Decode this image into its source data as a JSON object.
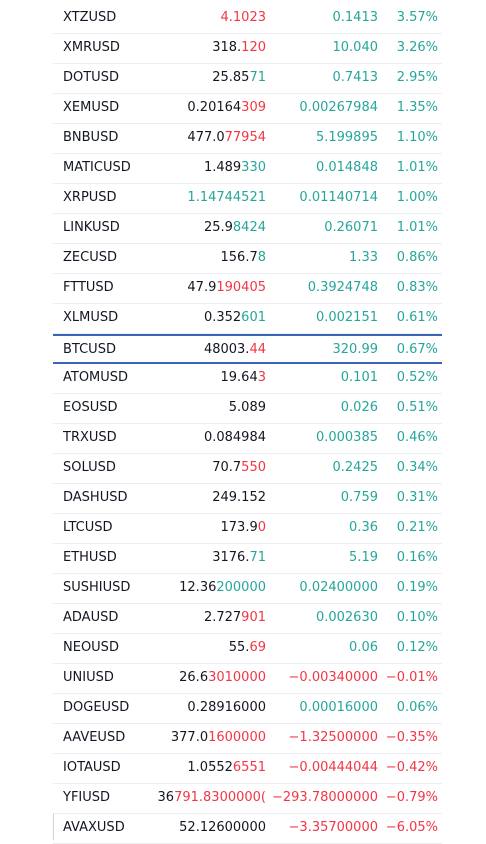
{
  "colors": {
    "up": "#26a69a",
    "down": "#f23645",
    "text": "#131722",
    "selected_border": "#3a64b5"
  },
  "watchlist": {
    "rows": [
      {
        "symbol": "XTZUSD",
        "last_base": "",
        "last_tick": "4.1023",
        "tick_dir": "down",
        "change": "0.1413",
        "change_pct": "3.57%",
        "dir": "up"
      },
      {
        "symbol": "XMRUSD",
        "last_base": "318.",
        "last_tick": "120",
        "tick_dir": "down",
        "change": "10.040",
        "change_pct": "3.26%",
        "dir": "up"
      },
      {
        "symbol": "DOTUSD",
        "last_base": "25.85",
        "last_tick": "71",
        "tick_dir": "up",
        "change": "0.7413",
        "change_pct": "2.95%",
        "dir": "up"
      },
      {
        "symbol": "XEMUSD",
        "last_base": "0.20164",
        "last_tick": "309",
        "tick_dir": "down",
        "change": "0.00267984",
        "change_pct": "1.35%",
        "dir": "up"
      },
      {
        "symbol": "BNBUSD",
        "last_base": "477.0",
        "last_tick": "77954",
        "tick_dir": "down",
        "change": "5.199895",
        "change_pct": "1.10%",
        "dir": "up"
      },
      {
        "symbol": "MATICUSD",
        "last_base": "1.489",
        "last_tick": "330",
        "tick_dir": "up",
        "change": "0.014848",
        "change_pct": "1.01%",
        "dir": "up"
      },
      {
        "symbol": "XRPUSD",
        "last_base": "",
        "last_tick": "1.14744521",
        "tick_dir": "up",
        "change": "0.01140714",
        "change_pct": "1.00%",
        "dir": "up"
      },
      {
        "symbol": "LINKUSD",
        "last_base": "25.9",
        "last_tick": "8424",
        "tick_dir": "up",
        "change": "0.26071",
        "change_pct": "1.01%",
        "dir": "up"
      },
      {
        "symbol": "ZECUSD",
        "last_base": "156.7",
        "last_tick": "8",
        "tick_dir": "up",
        "change": "1.33",
        "change_pct": "0.86%",
        "dir": "up"
      },
      {
        "symbol": "FTTUSD",
        "last_base": "47.9",
        "last_tick": "190405",
        "tick_dir": "down",
        "change": "0.3924748",
        "change_pct": "0.83%",
        "dir": "up"
      },
      {
        "symbol": "XLMUSD",
        "last_base": "0.352",
        "last_tick": "601",
        "tick_dir": "up",
        "change": "0.002151",
        "change_pct": "0.61%",
        "dir": "up"
      },
      {
        "symbol": "BTCUSD",
        "last_base": "48003.",
        "last_tick": "44",
        "tick_dir": "down",
        "change": "320.99",
        "change_pct": "0.67%",
        "dir": "up",
        "selected": true
      },
      {
        "symbol": "ATOMUSD",
        "last_base": "19.64",
        "last_tick": "3",
        "tick_dir": "down",
        "change": "0.101",
        "change_pct": "0.52%",
        "dir": "up"
      },
      {
        "symbol": "EOSUSD",
        "last_base": "5.089",
        "last_tick": "",
        "tick_dir": "up",
        "change": "0.026",
        "change_pct": "0.51%",
        "dir": "up"
      },
      {
        "symbol": "TRXUSD",
        "last_base": "0.084984",
        "last_tick": "",
        "tick_dir": "up",
        "change": "0.000385",
        "change_pct": "0.46%",
        "dir": "up"
      },
      {
        "symbol": "SOLUSD",
        "last_base": "70.7",
        "last_tick": "550",
        "tick_dir": "down",
        "change": "0.2425",
        "change_pct": "0.34%",
        "dir": "up"
      },
      {
        "symbol": "DASHUSD",
        "last_base": "249.152",
        "last_tick": "",
        "tick_dir": "up",
        "change": "0.759",
        "change_pct": "0.31%",
        "dir": "up"
      },
      {
        "symbol": "LTCUSD",
        "last_base": "173.9",
        "last_tick": "0",
        "tick_dir": "down",
        "change": "0.36",
        "change_pct": "0.21%",
        "dir": "up"
      },
      {
        "symbol": "ETHUSD",
        "last_base": "3176.",
        "last_tick": "71",
        "tick_dir": "up",
        "change": "5.19",
        "change_pct": "0.16%",
        "dir": "up"
      },
      {
        "symbol": "SUSHIUSD",
        "last_base": "12.36",
        "last_tick": "200000",
        "tick_dir": "up",
        "change": "0.02400000",
        "change_pct": "0.19%",
        "dir": "up"
      },
      {
        "symbol": "ADAUSD",
        "last_base": "2.727",
        "last_tick": "901",
        "tick_dir": "down",
        "change": "0.002630",
        "change_pct": "0.10%",
        "dir": "up"
      },
      {
        "symbol": "NEOUSD",
        "last_base": "55.",
        "last_tick": "69",
        "tick_dir": "down",
        "change": "0.06",
        "change_pct": "0.12%",
        "dir": "up"
      },
      {
        "symbol": "UNIUSD",
        "last_base": "26.6",
        "last_tick": "3010000",
        "tick_dir": "down",
        "change": "−0.00340000",
        "change_pct": "−0.01%",
        "dir": "down"
      },
      {
        "symbol": "DOGEUSD",
        "last_base": "0.28916000",
        "last_tick": "",
        "tick_dir": "up",
        "change": "0.00016000",
        "change_pct": "0.06%",
        "dir": "up"
      },
      {
        "symbol": "AAVEUSD",
        "last_base": "377.0",
        "last_tick": "1600000",
        "tick_dir": "down",
        "change": "−1.32500000",
        "change_pct": "−0.35%",
        "dir": "down"
      },
      {
        "symbol": "IOTAUSD",
        "last_base": "1.0552",
        "last_tick": "6551",
        "tick_dir": "down",
        "change": "−0.00444044",
        "change_pct": "−0.42%",
        "dir": "down"
      },
      {
        "symbol": "YFIUSD",
        "last_base": "36",
        "last_tick": "791.8300000(",
        "tick_dir": "down",
        "change": "−293.78000000",
        "change_pct": "−0.79%",
        "dir": "down"
      },
      {
        "symbol": "AVAXUSD",
        "last_base": "52.12600000",
        "last_tick": "",
        "tick_dir": "down",
        "change": "−3.35700000",
        "change_pct": "−6.05%",
        "dir": "down"
      }
    ]
  }
}
